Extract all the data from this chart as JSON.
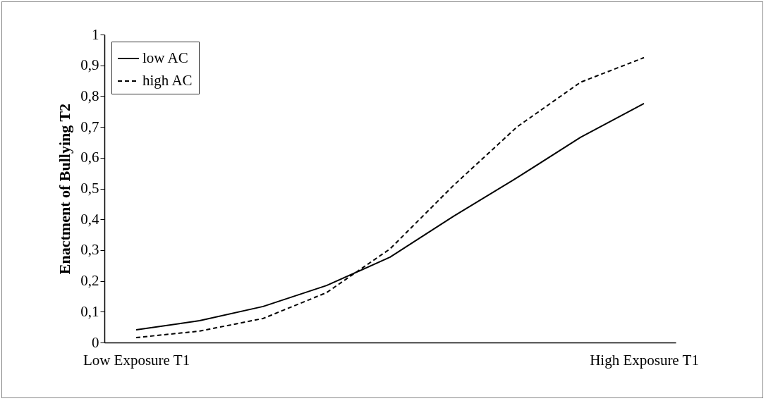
{
  "chart_data": {
    "type": "line",
    "ylabel": "Enactment of Bullying T2",
    "categories": [
      "Low Exposure T1",
      null,
      null,
      null,
      null,
      null,
      null,
      null,
      "High Exposure T1"
    ],
    "series": [
      {
        "name": "low  AC",
        "color": "#000000",
        "line_style": "solid",
        "values": [
          0.041,
          0.071,
          0.117,
          0.185,
          0.277,
          0.41,
          0.535,
          0.666,
          0.776
        ]
      },
      {
        "name": "high AC",
        "color": "#000000",
        "line_style": "dashed",
        "values": [
          0.016,
          0.037,
          0.078,
          0.162,
          0.304,
          0.51,
          0.7,
          0.845,
          0.925
        ]
      }
    ],
    "ylim": [
      0,
      1
    ],
    "yticks": [
      0,
      {
        "value": 0.1,
        "label": "0,1"
      },
      {
        "value": 0.2,
        "label": "0,2"
      },
      {
        "value": 0.3,
        "label": "0,3"
      },
      {
        "value": 0.4,
        "label": "0,4"
      },
      {
        "value": 0.5,
        "label": "0,5"
      },
      {
        "value": 0.6,
        "label": "0,6"
      },
      {
        "value": 0.7,
        "label": "0,7"
      },
      {
        "value": 0.8,
        "label": "0,8"
      },
      {
        "value": 0.9,
        "label": "0,9"
      },
      1
    ],
    "grid": false,
    "legend": "top left",
    "marker": "none"
  }
}
